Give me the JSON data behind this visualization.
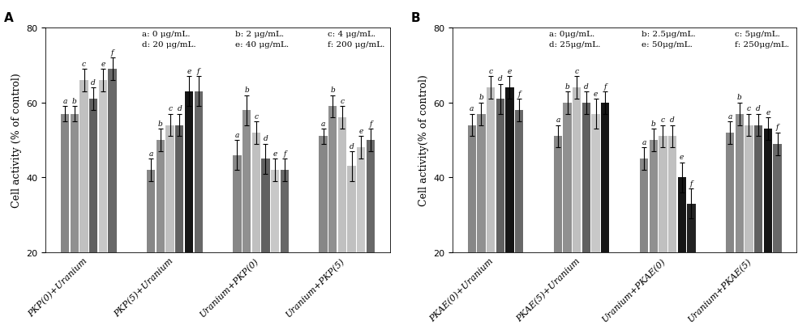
{
  "panel_A": {
    "title": "A",
    "ylabel": "Cell activity (% of control)",
    "ylim": [
      20,
      80
    ],
    "yticks": [
      20,
      40,
      60,
      80
    ],
    "groups": [
      "PKP(0)+Uranium",
      "PKP(5)+Uranium",
      "Uranium+PKP(0)",
      "Uranium+PKP(5)"
    ],
    "legend_text": [
      "a: 0 μg/mL.",
      "b: 2 μg/mL.",
      "c: 4 μg/mL.",
      "d: 20 μg/mL.",
      "e: 40 μg/mL.",
      "f: 200 μg/mL."
    ],
    "values": [
      [
        57,
        57,
        66,
        61,
        66,
        69
      ],
      [
        42,
        50,
        54,
        54,
        63,
        63
      ],
      [
        46,
        58,
        52,
        45,
        42,
        42
      ],
      [
        51,
        59,
        56,
        43,
        48,
        50
      ]
    ],
    "errors": [
      [
        2,
        2,
        3,
        3,
        3,
        3
      ],
      [
        3,
        3,
        3,
        3,
        4,
        4
      ],
      [
        4,
        4,
        3,
        4,
        3,
        3
      ],
      [
        2,
        3,
        3,
        4,
        3,
        3
      ]
    ],
    "bar_labels": [
      "a",
      "b",
      "c",
      "d",
      "e",
      "f"
    ],
    "bar_colors": [
      [
        "#878787",
        "#909090",
        "#c0c0c0",
        "#606060",
        "#c8c8c8",
        "#686868"
      ],
      [
        "#878787",
        "#909090",
        "#c0c0c0",
        "#606060",
        "#151515",
        "#686868"
      ],
      [
        "#878787",
        "#909090",
        "#c0c0c0",
        "#606060",
        "#c8c8c8",
        "#686868"
      ],
      [
        "#878787",
        "#909090",
        "#c0c0c0",
        "#c0c0c0",
        "#c8c8c8",
        "#686868"
      ]
    ]
  },
  "panel_B": {
    "title": "B",
    "ylabel": "Cell activity(% of control)",
    "ylim": [
      20,
      80
    ],
    "yticks": [
      20,
      40,
      60,
      80
    ],
    "groups": [
      "PKAE(0)+Uranium",
      "PKAE(5)+Uranium",
      "Uranium+PKAE(0)",
      "Uranium+PKAE(5)"
    ],
    "legend_text": [
      "a: 0μg/mL.",
      "b: 2.5μg/mL.",
      "c: 5μg/mL.",
      "d: 25μg/mL.",
      "e: 50μg/mL.",
      "f: 250μg/mL."
    ],
    "values": [
      [
        54,
        57,
        64,
        61,
        64,
        58
      ],
      [
        51,
        60,
        64,
        60,
        57,
        60
      ],
      [
        45,
        50,
        51,
        51,
        40,
        33
      ],
      [
        52,
        57,
        54,
        54,
        53,
        49
      ]
    ],
    "errors": [
      [
        3,
        3,
        3,
        4,
        3,
        3
      ],
      [
        3,
        3,
        3,
        3,
        4,
        3
      ],
      [
        3,
        3,
        3,
        3,
        4,
        4
      ],
      [
        3,
        3,
        3,
        3,
        3,
        3
      ]
    ],
    "bar_labels": [
      "a",
      "b",
      "c",
      "d",
      "e",
      "f"
    ],
    "bar_colors": [
      [
        "#878787",
        "#909090",
        "#c0c0c0",
        "#606060",
        "#151515",
        "#686868"
      ],
      [
        "#878787",
        "#909090",
        "#c0c0c0",
        "#606060",
        "#c8c8c8",
        "#151515"
      ],
      [
        "#878787",
        "#909090",
        "#c0c0c0",
        "#c0c0c0",
        "#151515",
        "#222222"
      ],
      [
        "#878787",
        "#909090",
        "#c0c0c0",
        "#606060",
        "#151515",
        "#686868"
      ]
    ]
  },
  "background_color": "#ffffff",
  "bar_width": 0.11,
  "label_fontsize": 6.5,
  "tick_fontsize": 8,
  "legend_fontsize": 7.5,
  "ylabel_fontsize": 9
}
